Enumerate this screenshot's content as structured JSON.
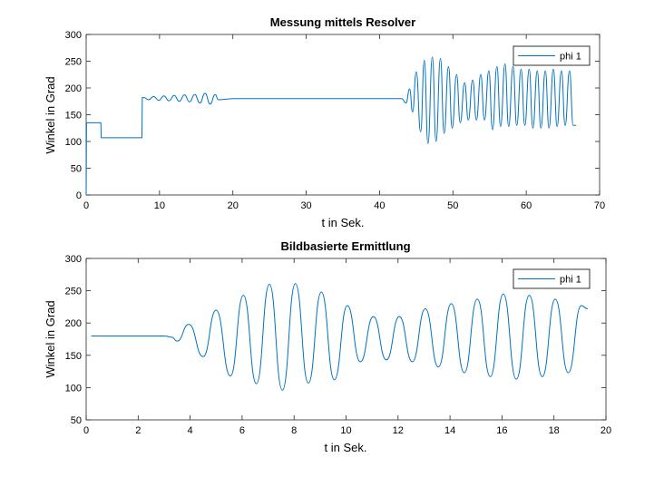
{
  "chart_data": [
    {
      "type": "line",
      "title": "Messung mittels Resolver",
      "xlabel": "t in Sek.",
      "ylabel": "Winkel in Grad",
      "xlim": [
        0,
        70
      ],
      "ylim": [
        0,
        300
      ],
      "xticks": [
        0,
        10,
        20,
        30,
        40,
        50,
        60,
        70
      ],
      "yticks": [
        0,
        50,
        100,
        150,
        200,
        250,
        300
      ],
      "legend": "top-right",
      "grid": false,
      "color": "#0072bd",
      "series": [
        {
          "name": "phi 1",
          "x": [
            0,
            0.05,
            0.15,
            2.0,
            2.05,
            7.6,
            7.65,
            7.9,
            8.5,
            9.2,
            9.9,
            10.6,
            11.3,
            12.0,
            12.7,
            13.4,
            14.1,
            14.8,
            15.5,
            16.2,
            16.9,
            17.6,
            18.0,
            20.0,
            25.0,
            30.0,
            35.0,
            40.0,
            43.0,
            43.6,
            44.1,
            44.5,
            45.0,
            45.6,
            46.1,
            46.6,
            47.2,
            47.7,
            48.3,
            48.8,
            49.4,
            49.9,
            50.5,
            51.0,
            51.6,
            52.1,
            52.7,
            53.2,
            53.8,
            54.3,
            54.9,
            55.4,
            56.0,
            56.5,
            57.1,
            57.6,
            58.2,
            58.7,
            59.3,
            59.8,
            60.4,
            60.9,
            61.5,
            62.0,
            62.6,
            63.1,
            63.7,
            64.2,
            64.8,
            65.3,
            65.9,
            66.4,
            66.8
          ],
          "y": [
            0,
            135,
            135,
            135,
            107,
            107,
            182,
            182,
            178,
            184,
            177,
            185,
            176,
            186,
            175,
            187,
            174,
            188,
            172,
            190,
            170,
            188,
            178,
            180,
            180,
            180,
            180,
            180,
            180,
            172,
            198,
            155,
            230,
            118,
            252,
            96,
            258,
            100,
            255,
            115,
            240,
            125,
            225,
            135,
            210,
            140,
            215,
            140,
            225,
            140,
            232,
            122,
            240,
            128,
            245,
            128,
            240,
            130,
            235,
            130,
            235,
            125,
            232,
            125,
            232,
            125,
            235,
            128,
            232,
            130,
            232,
            130,
            130
          ]
        }
      ]
    },
    {
      "type": "line",
      "title": "Bildbasierte Ermittlung",
      "xlabel": "t in Sek.",
      "ylabel": "Winkel in Grad",
      "xlim": [
        0,
        20
      ],
      "ylim": [
        50,
        300
      ],
      "xticks": [
        0,
        2,
        4,
        6,
        8,
        10,
        12,
        14,
        16,
        18,
        20
      ],
      "yticks": [
        50,
        100,
        150,
        200,
        250,
        300
      ],
      "legend": "top-right",
      "grid": false,
      "color": "#0072bd",
      "series": [
        {
          "name": "phi 1",
          "x": [
            0.2,
            1.0,
            2.0,
            3.0,
            3.3,
            3.5,
            3.95,
            4.5,
            5.0,
            5.55,
            6.05,
            6.55,
            7.05,
            7.55,
            8.05,
            8.55,
            9.05,
            9.55,
            10.05,
            10.55,
            11.05,
            11.55,
            12.05,
            12.55,
            13.05,
            13.55,
            14.05,
            14.55,
            15.05,
            15.55,
            16.05,
            16.55,
            17.05,
            17.55,
            18.05,
            18.55,
            19.05,
            19.3
          ],
          "y": [
            180,
            180,
            180,
            180,
            178,
            172,
            198,
            148,
            220,
            118,
            243,
            106,
            260,
            96,
            261,
            107,
            248,
            112,
            227,
            140,
            210,
            143,
            210,
            140,
            222,
            132,
            230,
            123,
            237,
            117,
            245,
            113,
            243,
            117,
            237,
            123,
            227,
            222
          ]
        }
      ]
    }
  ]
}
